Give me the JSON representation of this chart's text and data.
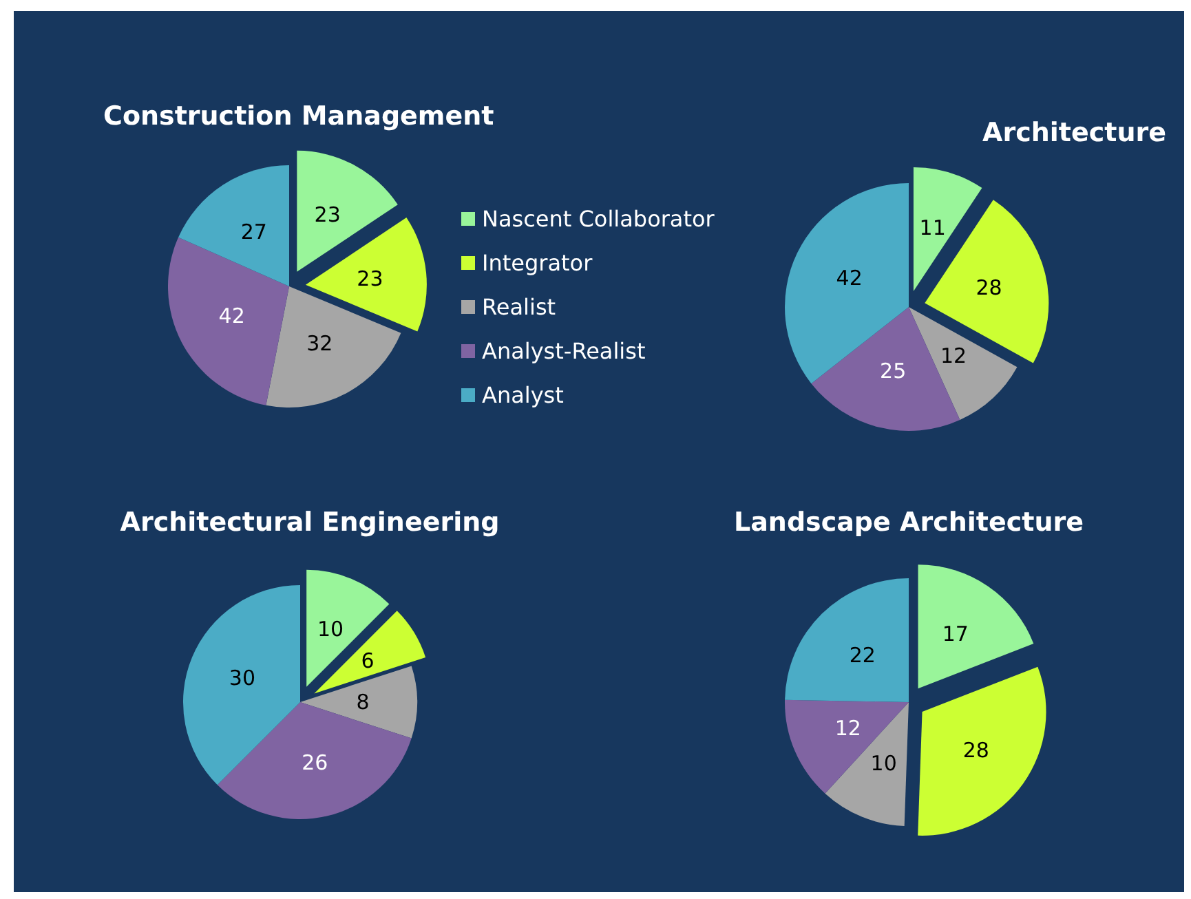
{
  "chart_data": [
    {
      "type": "pie",
      "title": "Construction Management",
      "categories": [
        "Nascent Collaborator",
        "Integrator",
        "Realist",
        "Analyst-Realist",
        "Analyst"
      ],
      "values": [
        23,
        23,
        32,
        42,
        27
      ],
      "colors": [
        "#99f59a",
        "#ccff33",
        "#a6a6a6",
        "#8064a2",
        "#4bacc6"
      ],
      "data_labels": true,
      "legend": "right"
    },
    {
      "type": "pie",
      "title": "Architecture",
      "categories": [
        null,
        null,
        null,
        null,
        null
      ],
      "values": [
        11,
        28,
        12,
        25,
        42
      ],
      "colors": [
        "#99f59a",
        "#ccff33",
        "#a6a6a6",
        "#8064a2",
        "#4bacc6"
      ],
      "data_labels": true,
      "legend": false
    },
    {
      "type": "pie",
      "title": "Architectural Engineering",
      "categories": [
        null,
        null,
        null,
        null,
        null
      ],
      "values": [
        10,
        6,
        8,
        26,
        30
      ],
      "colors": [
        "#99f59a",
        "#ccff33",
        "#a6a6a6",
        "#8064a2",
        "#4bacc6"
      ],
      "data_labels": true,
      "legend": false
    },
    {
      "type": "pie",
      "title": "Landscape Architecture",
      "categories": [
        null,
        null,
        null,
        null,
        null
      ],
      "values": [
        17,
        28,
        10,
        12,
        22
      ],
      "colors": [
        "#99f59a",
        "#ccff33",
        "#a6a6a6",
        "#8064a2",
        "#4bacc6"
      ],
      "data_labels": true,
      "legend": false
    }
  ]
}
